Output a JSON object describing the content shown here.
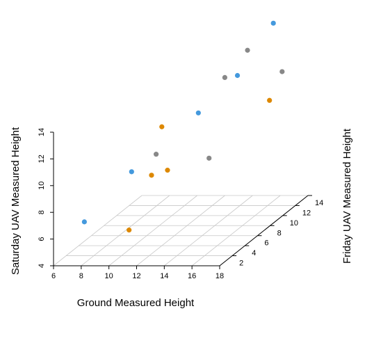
{
  "chart_data": {
    "type": "scatter",
    "title": "",
    "xlabel": "Ground Measured Height",
    "ylabel": "Friday UAV Measured Height",
    "zlabel": "Saturday UAV Measured Height",
    "xlim": [
      6,
      18
    ],
    "ylim": [
      0,
      14
    ],
    "zlim": [
      4,
      14
    ],
    "x_ticks": [
      6,
      8,
      10,
      12,
      14,
      16,
      18
    ],
    "y_ticks": [
      2,
      4,
      6,
      8,
      10,
      12,
      14
    ],
    "z_ticks": [
      4,
      6,
      8,
      10,
      12,
      14
    ],
    "grid": true,
    "legend": "none",
    "colors": [
      "#4499dd",
      "#dd8800",
      "#888888"
    ],
    "points": [
      {
        "x": 8.0,
        "y": 0.5,
        "z": 7.1,
        "color": "#4499dd"
      },
      {
        "x": 10.5,
        "y": 2.5,
        "z": 10.1,
        "color": "#4499dd"
      },
      {
        "x": 13.5,
        "y": 6.5,
        "z": 13.0,
        "color": "#4499dd"
      },
      {
        "x": 14.5,
        "y": 10.5,
        "z": 14.3,
        "color": "#4499dd"
      },
      {
        "x": 15.5,
        "y": 14.0,
        "z": 16.9,
        "color": "#4499dd"
      },
      {
        "x": 11.0,
        "y": 1.0,
        "z": 6.3,
        "color": "#dd8800"
      },
      {
        "x": 10.8,
        "y": 5.0,
        "z": 8.9,
        "color": "#dd8800"
      },
      {
        "x": 11.5,
        "y": 6.0,
        "z": 8.9,
        "color": "#dd8800"
      },
      {
        "x": 12.0,
        "y": 4.0,
        "z": 12.9,
        "color": "#dd8800"
      },
      {
        "x": 17.5,
        "y": 9.0,
        "z": 13.0,
        "color": "#dd8800"
      },
      {
        "x": 12.5,
        "y": 2.0,
        "z": 11.6,
        "color": "#888888"
      },
      {
        "x": 14.5,
        "y": 6.0,
        "z": 9.8,
        "color": "#888888"
      },
      {
        "x": 14.5,
        "y": 8.5,
        "z": 14.9,
        "color": "#888888"
      },
      {
        "x": 15.0,
        "y": 11.0,
        "z": 16.0,
        "color": "#888888"
      },
      {
        "x": 17.5,
        "y": 11.0,
        "z": 14.4,
        "color": "#888888"
      }
    ]
  }
}
